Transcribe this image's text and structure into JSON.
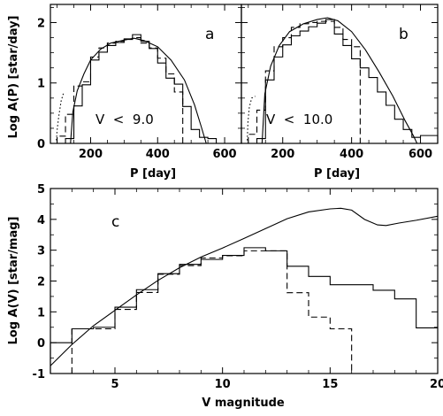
{
  "chart_data": [
    {
      "panel": "a",
      "type": "line",
      "title": "",
      "panel_label": "a",
      "annotation": "V  <  9.0",
      "xlabel": "P [day]",
      "ylabel": "Log A(P) [star/day]",
      "xlim": [
        80,
        650
      ],
      "ylim": [
        0,
        2.3
      ],
      "xticks": [
        200,
        400,
        600
      ],
      "yticks": [
        0,
        1,
        2
      ],
      "colors": {
        "line": "#000000",
        "frame": "#000000"
      },
      "series": [
        {
          "style": "histogram-solid",
          "bin_width": 25,
          "bins": [
            [
              125,
              0.08
            ],
            [
              150,
              0.62
            ],
            [
              175,
              0.97
            ],
            [
              200,
              1.38
            ],
            [
              225,
              1.51
            ],
            [
              250,
              1.62
            ],
            [
              275,
              1.67
            ],
            [
              300,
              1.73
            ],
            [
              325,
              1.8
            ],
            [
              350,
              1.69
            ],
            [
              375,
              1.57
            ],
            [
              400,
              1.33
            ],
            [
              425,
              1.08
            ],
            [
              450,
              0.98
            ],
            [
              475,
              0.61
            ],
            [
              500,
              0.23
            ],
            [
              525,
              0.1
            ],
            [
              550,
              0.08
            ]
          ]
        },
        {
          "style": "histogram-dashed",
          "bin_width": 25,
          "bins": [
            [
              100,
              0.12
            ],
            [
              125,
              0.48
            ],
            [
              150,
              0.95
            ],
            [
              175,
              1.02
            ],
            [
              200,
              1.43
            ],
            [
              225,
              1.58
            ],
            [
              250,
              1.66
            ],
            [
              275,
              1.69
            ],
            [
              300,
              1.72
            ],
            [
              325,
              1.75
            ],
            [
              350,
              1.66
            ],
            [
              375,
              1.58
            ],
            [
              400,
              1.41
            ],
            [
              425,
              1.15
            ],
            [
              450,
              0.85
            ]
          ]
        },
        {
          "style": "curve",
          "points": [
            [
              140,
              0
            ],
            [
              147,
              0.52
            ],
            [
              160,
              0.87
            ],
            [
              180,
              1.15
            ],
            [
              200,
              1.38
            ],
            [
              230,
              1.56
            ],
            [
              260,
              1.66
            ],
            [
              300,
              1.71
            ],
            [
              330,
              1.74
            ],
            [
              360,
              1.7
            ],
            [
              400,
              1.6
            ],
            [
              440,
              1.38
            ],
            [
              480,
              1.05
            ],
            [
              510,
              0.64
            ],
            [
              530,
              0.28
            ],
            [
              545,
              0
            ]
          ]
        },
        {
          "style": "dotted",
          "points": [
            [
              98,
              0.05
            ],
            [
              100,
              0.22
            ],
            [
              105,
              0.45
            ],
            [
              112,
              0.7
            ],
            [
              120,
              0.85
            ]
          ]
        }
      ]
    },
    {
      "panel": "b",
      "type": "line",
      "title": "",
      "panel_label": "b",
      "annotation": "V  <  10.0",
      "xlabel": "P [day]",
      "ylabel": "",
      "xlim": [
        80,
        650
      ],
      "ylim": [
        0,
        2.3
      ],
      "xticks": [
        200,
        400,
        600
      ],
      "yticks": [
        0,
        1,
        2
      ],
      "colors": {
        "line": "#000000",
        "frame": "#000000"
      },
      "series": [
        {
          "style": "histogram-solid",
          "bin_width": 25,
          "bins": [
            [
              125,
              0.08
            ],
            [
              150,
              1.05
            ],
            [
              175,
              1.43
            ],
            [
              200,
              1.63
            ],
            [
              225,
              1.78
            ],
            [
              250,
              1.86
            ],
            [
              275,
              1.93
            ],
            [
              300,
              1.99
            ],
            [
              325,
              2.05
            ],
            [
              350,
              1.81
            ],
            [
              375,
              1.62
            ],
            [
              400,
              1.4
            ],
            [
              425,
              1.25
            ],
            [
              450,
              1.09
            ],
            [
              475,
              0.85
            ],
            [
              500,
              0.63
            ],
            [
              525,
              0.4
            ],
            [
              550,
              0.23
            ],
            [
              575,
              0.1
            ],
            [
              600,
              0.13
            ],
            [
              625,
              0.13
            ]
          ]
        },
        {
          "style": "histogram-dashed",
          "bin_width": 25,
          "bins": [
            [
              100,
              0.15
            ],
            [
              125,
              0.55
            ],
            [
              150,
              1.2
            ],
            [
              175,
              1.6
            ],
            [
              200,
              1.75
            ],
            [
              225,
              1.92
            ],
            [
              250,
              1.98
            ],
            [
              275,
              2.0
            ],
            [
              300,
              2.02
            ],
            [
              325,
              2.02
            ],
            [
              350,
              1.92
            ],
            [
              375,
              1.72
            ],
            [
              400,
              1.6
            ]
          ]
        },
        {
          "style": "curve",
          "points": [
            [
              140,
              0
            ],
            [
              148,
              0.82
            ],
            [
              165,
              1.28
            ],
            [
              190,
              1.62
            ],
            [
              220,
              1.85
            ],
            [
              260,
              1.98
            ],
            [
              300,
              2.05
            ],
            [
              330,
              2.08
            ],
            [
              360,
              2.03
            ],
            [
              400,
              1.85
            ],
            [
              440,
              1.55
            ],
            [
              480,
              1.18
            ],
            [
              520,
              0.78
            ],
            [
              555,
              0.38
            ],
            [
              580,
              0.12
            ],
            [
              590,
              0
            ]
          ]
        },
        {
          "style": "dotted",
          "points": [
            [
              97,
              0.05
            ],
            [
              99,
              0.35
            ],
            [
              103,
              0.6
            ],
            [
              110,
              0.75
            ],
            [
              120,
              0.78
            ]
          ]
        }
      ]
    },
    {
      "panel": "c",
      "type": "line",
      "title": "",
      "panel_label": "c",
      "annotation": "",
      "xlabel": "V magnitude",
      "ylabel": "Log A(V) [star/mag]",
      "xlim": [
        2,
        20
      ],
      "ylim": [
        -1,
        5
      ],
      "xticks": [
        5,
        10,
        15,
        20
      ],
      "yticks": [
        -1,
        0,
        1,
        2,
        3,
        4,
        5
      ],
      "colors": {
        "line": "#000000",
        "frame": "#000000"
      },
      "series": [
        {
          "style": "histogram-solid",
          "bin_width": 1,
          "bins": [
            [
              2,
              0
            ],
            [
              3,
              0.45
            ],
            [
              4,
              0.5
            ],
            [
              5,
              1.15
            ],
            [
              6,
              1.72
            ],
            [
              7,
              2.24
            ],
            [
              8,
              2.54
            ],
            [
              9,
              2.7
            ],
            [
              10,
              2.83
            ],
            [
              11,
              3.08
            ],
            [
              12,
              2.98
            ],
            [
              13,
              2.48
            ],
            [
              14,
              2.15
            ],
            [
              15,
              1.88
            ],
            [
              16,
              1.88
            ],
            [
              17,
              1.7
            ],
            [
              18,
              1.42
            ],
            [
              19,
              0.48
            ]
          ]
        },
        {
          "style": "histogram-dashed",
          "bin_width": 1,
          "bins": [
            [
              3,
              0.45
            ],
            [
              4,
              0.45
            ],
            [
              5,
              1.08
            ],
            [
              6,
              1.63
            ],
            [
              7,
              2.22
            ],
            [
              8,
              2.5
            ],
            [
              9,
              2.75
            ],
            [
              10,
              2.82
            ],
            [
              11,
              2.98
            ],
            [
              12,
              2.98
            ],
            [
              13,
              1.62
            ],
            [
              14,
              0.83
            ],
            [
              15,
              0.45
            ]
          ]
        },
        {
          "style": "curve",
          "points": [
            [
              2,
              -0.75
            ],
            [
              3,
              -0.06
            ],
            [
              4,
              0.55
            ],
            [
              5,
              1.05
            ],
            [
              6,
              1.55
            ],
            [
              7,
              2.02
            ],
            [
              8,
              2.43
            ],
            [
              9,
              2.78
            ],
            [
              10,
              3.07
            ],
            [
              11,
              3.38
            ],
            [
              12,
              3.7
            ],
            [
              13,
              4.02
            ],
            [
              14,
              4.24
            ],
            [
              15,
              4.34
            ],
            [
              15.5,
              4.36
            ],
            [
              16,
              4.3
            ],
            [
              16.6,
              4.0
            ],
            [
              17.2,
              3.82
            ],
            [
              17.6,
              3.8
            ],
            [
              18.2,
              3.88
            ],
            [
              19,
              3.97
            ],
            [
              20,
              4.1
            ]
          ]
        }
      ]
    }
  ]
}
